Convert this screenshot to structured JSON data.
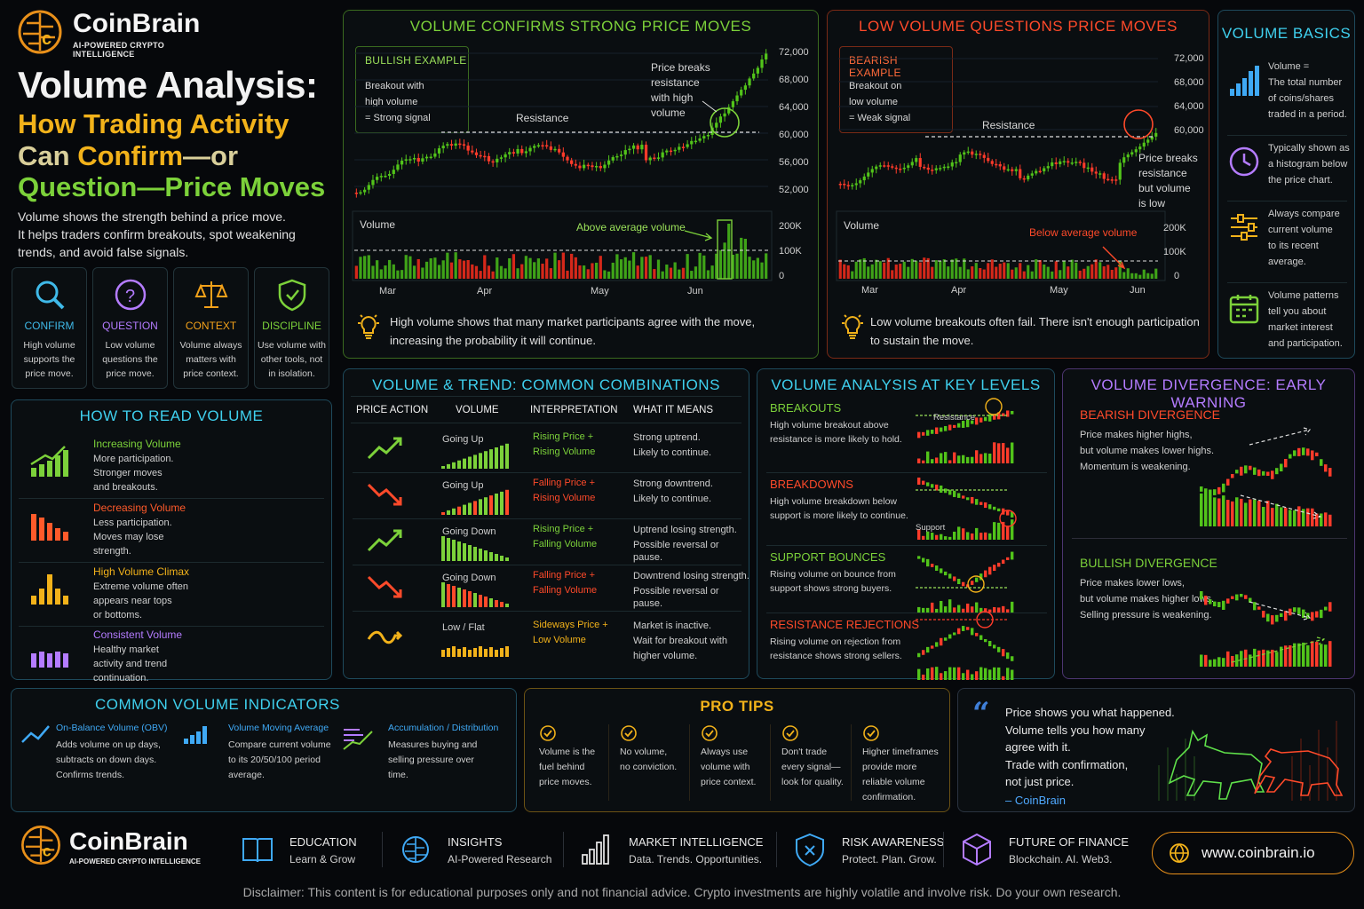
{
  "brand": {
    "name": "CoinBrain",
    "tagline": "AI-POWERED CRYPTO INTELLIGENCE"
  },
  "hero": {
    "title": "Volume Analysis:",
    "line2": "How Trading Activity",
    "line3a": "Can ",
    "line3b": "Confirm",
    "line3c": "—or",
    "line4": "Question—Price Moves",
    "desc": [
      "Volume shows the strength behind a price move.",
      "It helps traders confirm breakouts, spot weakening",
      "trends, and avoid false signals."
    ]
  },
  "pillars": [
    {
      "title": "CONFIRM",
      "text": [
        "High volume",
        "supports the",
        "price move."
      ],
      "color": "#3fb9e8",
      "icon": "magnifier-icon"
    },
    {
      "title": "QUESTION",
      "text": [
        "Low volume",
        "questions the",
        "price move."
      ],
      "color": "#b47cff",
      "icon": "question-icon"
    },
    {
      "title": "CONTEXT",
      "text": [
        "Volume always",
        "matters with",
        "price context."
      ],
      "color": "#f2a11a",
      "icon": "scales-icon"
    },
    {
      "title": "DISCIPLINE",
      "text": [
        "Use volume with",
        "other tools, not",
        "in isolation."
      ],
      "color": "#7cd13a",
      "icon": "shield-icon"
    }
  ],
  "how_to": {
    "title": "HOW TO READ VOLUME",
    "items": [
      {
        "title": "Increasing Volume",
        "text": [
          "More participation.",
          "Stronger moves",
          "and breakouts."
        ],
        "color": "#7cd13a"
      },
      {
        "title": "Decreasing Volume",
        "text": [
          "Less participation.",
          "Moves may lose",
          "strength."
        ],
        "color": "#ff5a2a"
      },
      {
        "title": "High Volume Climax",
        "text": [
          "Extreme volume often",
          "appears near tops",
          "or bottoms."
        ],
        "color": "#f2b21a"
      },
      {
        "title": "Consistent Volume",
        "text": [
          "Healthy market",
          "activity and trend",
          "continuation."
        ],
        "color": "#b47cff"
      }
    ]
  },
  "confirm_chart": {
    "title": "VOLUME CONFIRMS STRONG PRICE MOVES",
    "box_title": "BULLISH EXAMPLE",
    "box_text": [
      "Breakout with",
      "high volume",
      "= Strong signal"
    ],
    "resistance": "Resistance",
    "annot": [
      "Price breaks",
      "resistance",
      "with high",
      "volume"
    ],
    "yticks": [
      "72,000",
      "68,000",
      "64,000",
      "60,000",
      "56,000",
      "52,000"
    ],
    "vol_label": "Volume",
    "vol_annot": "Above average volume",
    "vticks": [
      "200K",
      "100K",
      "0"
    ],
    "months": [
      "Mar",
      "Apr",
      "May",
      "Jun"
    ],
    "note": [
      "High volume shows that many market participants agree with the move,",
      "increasing the probability it will continue."
    ]
  },
  "question_chart": {
    "title": "LOW VOLUME QUESTIONS PRICE MOVES",
    "box_title": "BEARISH EXAMPLE",
    "box_text": [
      "Breakout on",
      "low volume",
      "= Weak signal"
    ],
    "resistance": "Resistance",
    "annot": [
      "Price breaks",
      "resistance",
      "but volume",
      "is low"
    ],
    "yticks": [
      "72,000",
      "68,000",
      "64,000",
      "60,000"
    ],
    "vol_label": "Volume",
    "vol_annot": "Below average volume",
    "vticks": [
      "200K",
      "100K",
      "0"
    ],
    "months": [
      "Mar",
      "Apr",
      "May",
      "Jun"
    ],
    "note": [
      "Low volume breakouts often fail. There isn't enough participation",
      "to sustain the move."
    ]
  },
  "basics": {
    "title": "VOLUME BASICS",
    "items": [
      {
        "text": [
          "Volume =",
          "The total number",
          "of coins/shares",
          "traded in a period."
        ],
        "icon": "bars-icon"
      },
      {
        "text": [
          "Typically shown as",
          "a histogram below",
          "the price chart."
        ],
        "icon": "clock-icon"
      },
      {
        "text": [
          "Always compare",
          "current volume",
          "to its recent",
          "average."
        ],
        "icon": "sliders-icon"
      },
      {
        "text": [
          "Volume patterns",
          "tell you about",
          "market interest",
          "and participation."
        ],
        "icon": "calendar-icon"
      }
    ]
  },
  "combos": {
    "title": "VOLUME & TREND: COMMON COMBINATIONS",
    "headers": [
      "PRICE ACTION",
      "VOLUME",
      "INTERPRETATION",
      "WHAT IT MEANS"
    ],
    "rows": [
      {
        "vol": "Going Up",
        "interp": [
          "Rising Price +",
          "Rising Volume"
        ],
        "meaning": [
          "Strong uptrend.",
          "Likely to continue."
        ],
        "color": "#7cd13a",
        "dir": "up"
      },
      {
        "vol": "Going Up",
        "interp": [
          "Falling Price +",
          "Rising Volume"
        ],
        "meaning": [
          "Strong downtrend.",
          "Likely to continue."
        ],
        "color": "#ff4a2a",
        "dir": "down"
      },
      {
        "vol": "Going Down",
        "interp": [
          "Rising Price +",
          "Falling Volume"
        ],
        "meaning": [
          "Uptrend losing strength.",
          "Possible reversal or pause."
        ],
        "color": "#7cd13a",
        "dir": "up"
      },
      {
        "vol": "Going Down",
        "interp": [
          "Falling Price +",
          "Falling Volume"
        ],
        "meaning": [
          "Downtrend losing strength.",
          "Possible reversal or pause."
        ],
        "color": "#ff4a2a",
        "dir": "down"
      },
      {
        "vol": "Low / Flat",
        "interp": [
          "Sideways Price +",
          "Low Volume"
        ],
        "meaning": [
          "Market is inactive.",
          "Wait for breakout with",
          "higher volume."
        ],
        "color": "#f2b21a",
        "dir": "flat"
      }
    ]
  },
  "key_levels": {
    "title": "VOLUME ANALYSIS AT KEY LEVELS",
    "items": [
      {
        "title": "BREAKOUTS",
        "text": [
          "High volume breakout above",
          "resistance is more likely to hold."
        ],
        "color": "#7cd13a",
        "tag": "Resistance"
      },
      {
        "title": "BREAKDOWNS",
        "text": [
          "High volume breakdown below",
          "support is more likely to continue."
        ],
        "color": "#ff4a2a",
        "tag": "Support"
      },
      {
        "title": "SUPPORT BOUNCES",
        "text": [
          "Rising volume on bounce from",
          "support shows strong buyers."
        ],
        "color": "#7cd13a",
        "tag": ""
      },
      {
        "title": "RESISTANCE REJECTIONS",
        "text": [
          "Rising volume on rejection from",
          "resistance shows strong sellers."
        ],
        "color": "#ff4a2a",
        "tag": ""
      }
    ]
  },
  "divergence": {
    "title": "VOLUME DIVERGENCE: EARLY WARNING",
    "bear_title": "BEARISH DIVERGENCE",
    "bear_text": [
      "Price makes higher highs,",
      "but volume makes lower highs.",
      "Momentum is weakening."
    ],
    "bull_title": "BULLISH DIVERGENCE",
    "bull_text": [
      "Price makes lower lows,",
      "but volume makes higher lows.",
      "Selling pressure is weakening."
    ]
  },
  "indicators": {
    "title": "COMMON VOLUME INDICATORS",
    "items": [
      {
        "title": "On-Balance Volume (OBV)",
        "text": [
          "Adds volume on up days,",
          "subtracts on down days.",
          "Confirms trends."
        ]
      },
      {
        "title": "Volume Moving Average",
        "text": [
          "Compare current volume",
          "to its 20/50/100 period",
          "average."
        ]
      },
      {
        "title": "Accumulation / Distribution",
        "text": [
          "Measures buying and",
          "selling pressure over",
          "time."
        ]
      }
    ]
  },
  "tips": {
    "title": "PRO TIPS",
    "items": [
      [
        "Volume is the",
        "fuel behind",
        "price moves."
      ],
      [
        "No volume,",
        "no conviction."
      ],
      [
        "Always use",
        "volume with",
        "price context."
      ],
      [
        "Don't trade",
        "every signal—",
        "look for quality."
      ],
      [
        "Higher timeframes",
        "provide more",
        "reliable volume",
        "confirmation."
      ]
    ]
  },
  "quote": {
    "lines": [
      "Price shows you what happened.",
      "Volume tells you how many",
      "agree with it.",
      "Trade with confirmation,",
      "not just price."
    ],
    "author": "– CoinBrain"
  },
  "footer": {
    "items": [
      {
        "title": "EDUCATION",
        "sub": "Learn & Grow",
        "icon": "book-icon"
      },
      {
        "title": "INSIGHTS",
        "sub": "AI-Powered Research",
        "icon": "brain-icon"
      },
      {
        "title": "MARKET INTELLIGENCE",
        "sub": "Data. Trends. Opportunities.",
        "icon": "chart-icon"
      },
      {
        "title": "RISK AWARENESS",
        "sub": "Protect. Plan. Grow.",
        "icon": "shield-icon"
      },
      {
        "title": "FUTURE OF FINANCE",
        "sub": "Blockchain. AI. Web3.",
        "icon": "cube-icon"
      }
    ],
    "url": "www.coinbrain.io",
    "disclaimer": "Disclaimer: This content is for educational purposes only and not financial advice. Crypto investments are highly volatile and involve risk. Do your own research."
  }
}
